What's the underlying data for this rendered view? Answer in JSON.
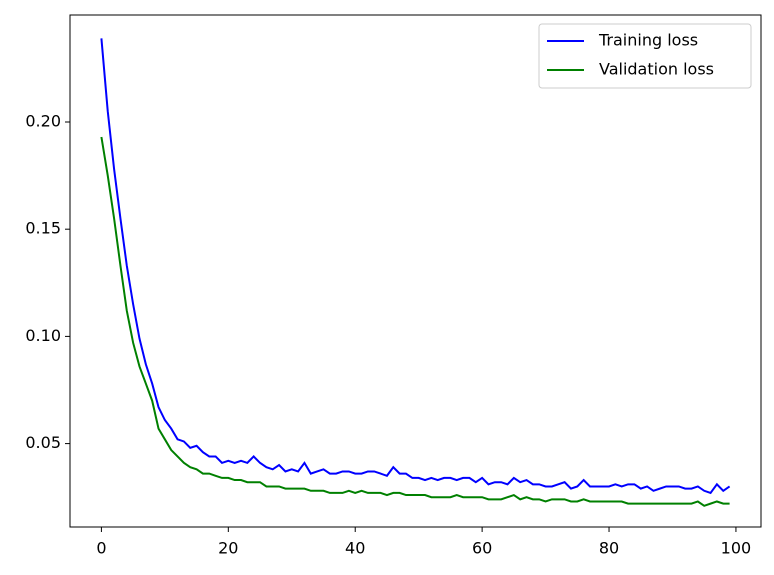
{
  "chart_data": {
    "type": "line",
    "x": [
      0,
      1,
      2,
      3,
      4,
      5,
      6,
      7,
      8,
      9,
      10,
      11,
      12,
      13,
      14,
      15,
      16,
      17,
      18,
      19,
      20,
      21,
      22,
      23,
      24,
      25,
      26,
      27,
      28,
      29,
      30,
      31,
      32,
      33,
      34,
      35,
      36,
      37,
      38,
      39,
      40,
      41,
      42,
      43,
      44,
      45,
      46,
      47,
      48,
      49,
      50,
      51,
      52,
      53,
      54,
      55,
      56,
      57,
      58,
      59,
      60,
      61,
      62,
      63,
      64,
      65,
      66,
      67,
      68,
      69,
      70,
      71,
      72,
      73,
      74,
      75,
      76,
      77,
      78,
      79,
      80,
      81,
      82,
      83,
      84,
      85,
      86,
      87,
      88,
      89,
      90,
      91,
      92,
      93,
      94,
      95,
      96,
      97,
      98,
      99
    ],
    "series": [
      {
        "name": "Training loss",
        "color": "#0000ff",
        "values": [
          0.239,
          0.205,
          0.178,
          0.155,
          0.133,
          0.115,
          0.099,
          0.087,
          0.078,
          0.067,
          0.061,
          0.057,
          0.052,
          0.051,
          0.048,
          0.049,
          0.046,
          0.044,
          0.044,
          0.041,
          0.042,
          0.041,
          0.042,
          0.041,
          0.044,
          0.041,
          0.039,
          0.038,
          0.04,
          0.037,
          0.038,
          0.037,
          0.041,
          0.036,
          0.037,
          0.038,
          0.036,
          0.036,
          0.037,
          0.037,
          0.036,
          0.036,
          0.037,
          0.037,
          0.036,
          0.035,
          0.039,
          0.036,
          0.036,
          0.034,
          0.034,
          0.033,
          0.034,
          0.033,
          0.034,
          0.034,
          0.033,
          0.034,
          0.034,
          0.032,
          0.034,
          0.031,
          0.032,
          0.032,
          0.031,
          0.034,
          0.032,
          0.033,
          0.031,
          0.031,
          0.03,
          0.03,
          0.031,
          0.032,
          0.029,
          0.03,
          0.033,
          0.03,
          0.03,
          0.03,
          0.03,
          0.031,
          0.03,
          0.031,
          0.031,
          0.029,
          0.03,
          0.028,
          0.029,
          0.03,
          0.03,
          0.03,
          0.029,
          0.029,
          0.03,
          0.028,
          0.027,
          0.031,
          0.028,
          0.03
        ]
      },
      {
        "name": "Validation loss",
        "color": "#008000",
        "values": [
          0.193,
          0.175,
          0.155,
          0.133,
          0.112,
          0.097,
          0.086,
          0.078,
          0.07,
          0.057,
          0.052,
          0.047,
          0.044,
          0.041,
          0.039,
          0.038,
          0.036,
          0.036,
          0.035,
          0.034,
          0.034,
          0.033,
          0.033,
          0.032,
          0.032,
          0.032,
          0.03,
          0.03,
          0.03,
          0.029,
          0.029,
          0.029,
          0.029,
          0.028,
          0.028,
          0.028,
          0.027,
          0.027,
          0.027,
          0.028,
          0.027,
          0.028,
          0.027,
          0.027,
          0.027,
          0.026,
          0.027,
          0.027,
          0.026,
          0.026,
          0.026,
          0.026,
          0.025,
          0.025,
          0.025,
          0.025,
          0.026,
          0.025,
          0.025,
          0.025,
          0.025,
          0.024,
          0.024,
          0.024,
          0.025,
          0.026,
          0.024,
          0.025,
          0.024,
          0.024,
          0.023,
          0.024,
          0.024,
          0.024,
          0.023,
          0.023,
          0.024,
          0.023,
          0.023,
          0.023,
          0.023,
          0.023,
          0.023,
          0.022,
          0.022,
          0.022,
          0.022,
          0.022,
          0.022,
          0.022,
          0.022,
          0.022,
          0.022,
          0.022,
          0.023,
          0.021,
          0.022,
          0.023,
          0.022,
          0.022
        ]
      }
    ],
    "xlim": [
      -4.95,
      103.95
    ],
    "xticks": [
      0,
      20,
      40,
      60,
      80,
      100
    ],
    "ylim": [
      0.0111,
      0.2499
    ],
    "yticks": [
      0.05,
      {
        "value": 0.1,
        "label": "0.10"
      },
      0.15,
      {
        "value": 0.2,
        "label": "0.20"
      }
    ],
    "grid": false,
    "legend": "upper right"
  }
}
